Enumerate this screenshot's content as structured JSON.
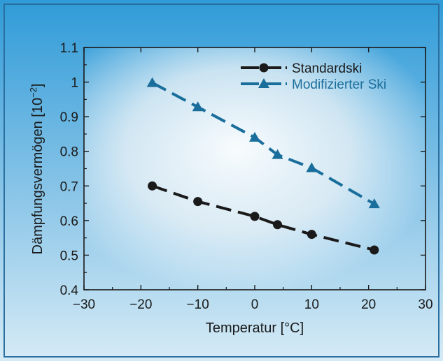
{
  "chart_data": {
    "type": "line",
    "xlabel": "Temperatur [°C]",
    "ylabel": "Dämpfungsvermögen [10",
    "ylabel_exponent": "−2",
    "ylabel_suffix": "]",
    "xlim": [
      -30,
      30
    ],
    "ylim": [
      0.4,
      1.1
    ],
    "xticks": [
      -30,
      -20,
      -10,
      0,
      10,
      20,
      30
    ],
    "xtick_labels": [
      "−30",
      "−20",
      "−10",
      "0",
      "10",
      "20",
      "30"
    ],
    "yticks": [
      0.4,
      0.5,
      0.6,
      0.7,
      0.8,
      0.9,
      1.0,
      1.1
    ],
    "ytick_labels": [
      "0.4",
      "0.5",
      "0.6",
      "0.7",
      "0.8",
      "0.9",
      "1",
      "1.1"
    ],
    "grid": false,
    "legend_position": "top-right",
    "series": [
      {
        "name": "Standardski",
        "marker": "circle",
        "color": "#1a1a1a",
        "x": [
          -18,
          -10,
          0,
          4,
          10,
          21
        ],
        "y": [
          0.7,
          0.655,
          0.612,
          0.588,
          0.56,
          0.515
        ]
      },
      {
        "name": "Modifizierter Ski",
        "marker": "triangle",
        "color": "#1a6e9c",
        "x": [
          -18,
          -10,
          0,
          4,
          10,
          21
        ],
        "y": [
          0.998,
          0.928,
          0.84,
          0.79,
          0.752,
          0.648
        ]
      }
    ]
  },
  "colors": {
    "frame_border": "#2a6fa0",
    "background_top": "#3fa6dc",
    "background_bottom": "#cfe7f4",
    "axis": "#1a1a1a"
  }
}
